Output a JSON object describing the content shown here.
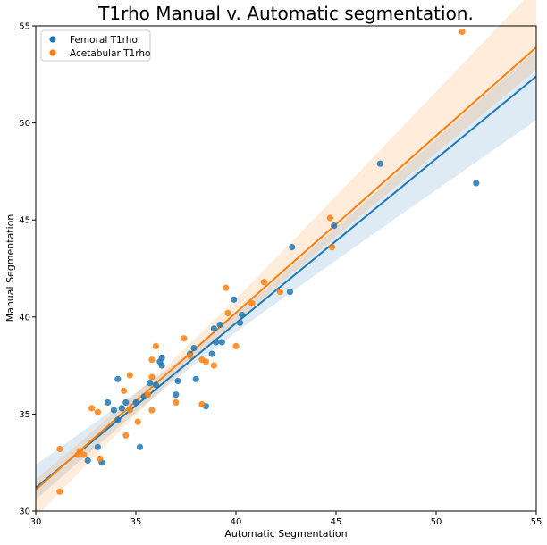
{
  "chart_data": {
    "type": "scatter",
    "title": "T1rho Manual v. Automatic segmentation.",
    "xlabel": "Automatic Segmentation",
    "ylabel": "Manual Segmentation",
    "xlim": [
      30,
      55
    ],
    "ylim": [
      30,
      55
    ],
    "xticks": [
      "30",
      "35",
      "40",
      "45",
      "50",
      "55"
    ],
    "yticks": [
      "30",
      "35",
      "40",
      "45",
      "50",
      "55"
    ],
    "grid": false,
    "legend_position": "top-left",
    "series": [
      {
        "name": "Femoral T1rho",
        "color": "#1f77b4",
        "points": [
          [
            32.6,
            32.6
          ],
          [
            33.1,
            33.3
          ],
          [
            33.3,
            32.5
          ],
          [
            33.6,
            35.6
          ],
          [
            33.9,
            35.2
          ],
          [
            34.1,
            36.8
          ],
          [
            34.1,
            34.7
          ],
          [
            34.3,
            35.3
          ],
          [
            34.5,
            35.6
          ],
          [
            35.0,
            35.6
          ],
          [
            35.2,
            33.3
          ],
          [
            35.4,
            35.9
          ],
          [
            35.7,
            36.6
          ],
          [
            36.0,
            36.5
          ],
          [
            36.2,
            37.7
          ],
          [
            36.3,
            37.5
          ],
          [
            36.3,
            37.9
          ],
          [
            37.0,
            36.0
          ],
          [
            37.1,
            36.7
          ],
          [
            37.7,
            38.1
          ],
          [
            37.9,
            38.4
          ],
          [
            38.0,
            36.8
          ],
          [
            38.5,
            35.4
          ],
          [
            38.8,
            38.1
          ],
          [
            38.9,
            39.4
          ],
          [
            39.0,
            38.7
          ],
          [
            39.2,
            39.6
          ],
          [
            39.3,
            38.7
          ],
          [
            39.9,
            40.9
          ],
          [
            40.2,
            39.7
          ],
          [
            40.3,
            40.1
          ],
          [
            42.7,
            41.3
          ],
          [
            42.8,
            43.6
          ],
          [
            44.9,
            44.7
          ],
          [
            47.2,
            47.9
          ],
          [
            52.0,
            46.9
          ]
        ],
        "regression": {
          "x": [
            30,
            55
          ],
          "y": [
            31.2,
            52.4
          ]
        }
      },
      {
        "name": "Acetabular T1rho",
        "color": "#ff7f0e",
        "points": [
          [
            31.2,
            33.2
          ],
          [
            31.2,
            31.0
          ],
          [
            32.1,
            32.9
          ],
          [
            32.2,
            33.1
          ],
          [
            32.4,
            32.9
          ],
          [
            32.8,
            35.3
          ],
          [
            33.1,
            35.1
          ],
          [
            33.2,
            32.7
          ],
          [
            34.4,
            36.2
          ],
          [
            34.5,
            33.9
          ],
          [
            34.7,
            35.2
          ],
          [
            34.7,
            37.0
          ],
          [
            35.1,
            34.6
          ],
          [
            35.6,
            36.0
          ],
          [
            35.8,
            36.9
          ],
          [
            35.8,
            35.2
          ],
          [
            35.8,
            37.8
          ],
          [
            36.0,
            38.5
          ],
          [
            37.0,
            35.6
          ],
          [
            37.4,
            38.9
          ],
          [
            37.7,
            38.0
          ],
          [
            38.3,
            37.8
          ],
          [
            38.3,
            35.5
          ],
          [
            38.5,
            37.7
          ],
          [
            38.9,
            37.5
          ],
          [
            39.5,
            41.5
          ],
          [
            39.6,
            40.2
          ],
          [
            40.0,
            38.5
          ],
          [
            40.8,
            40.7
          ],
          [
            41.4,
            41.8
          ],
          [
            42.2,
            41.3
          ],
          [
            44.7,
            45.1
          ],
          [
            44.8,
            43.6
          ],
          [
            51.3,
            54.7
          ]
        ],
        "regression": {
          "x": [
            30,
            55
          ],
          "y": [
            31.1,
            53.9
          ]
        }
      }
    ]
  }
}
